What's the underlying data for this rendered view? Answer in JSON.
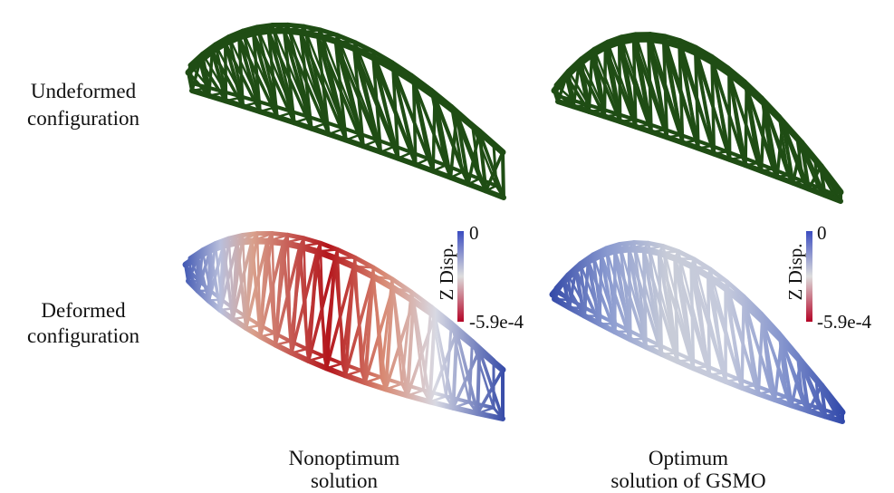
{
  "row_labels": [
    [
      "Undeformed",
      "configuration"
    ],
    [
      "Deformed",
      "configuration"
    ]
  ],
  "column_labels": [
    [
      "Nonoptimum",
      "solution"
    ],
    [
      "Optimum",
      "solution of GSMO"
    ]
  ],
  "colorbars": [
    {
      "label": "Z Disp.",
      "max": "0",
      "min": "-5.9e-4"
    },
    {
      "label": "Z Disp.",
      "max": "0",
      "min": "-5.9e-4"
    }
  ]
}
